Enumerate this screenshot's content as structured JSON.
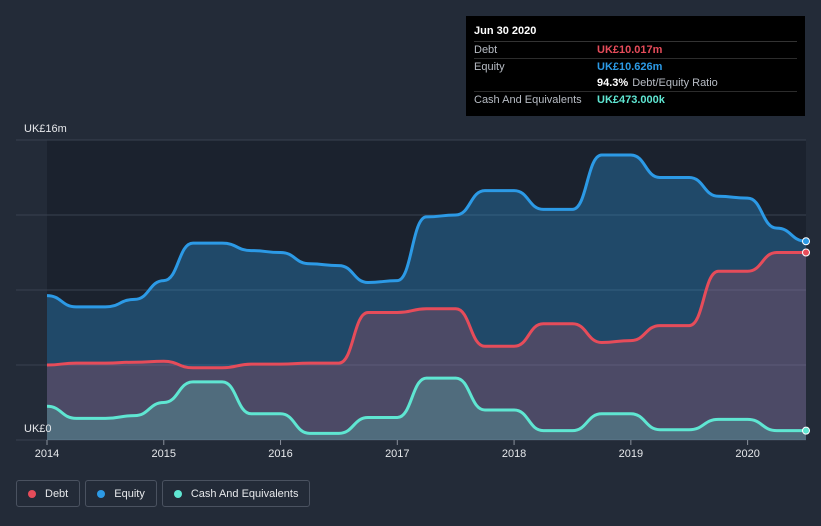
{
  "colors": {
    "debt": "#e64c5a",
    "equity": "#2c9ae6",
    "cash": "#5fe6d2",
    "background": "#232b38",
    "plot_shade": "#161c27"
  },
  "tooltip": {
    "date": "Jun 30 2020",
    "rows": [
      {
        "label": "Debt",
        "value": "UK£10.017m",
        "color": "#e64c5a"
      },
      {
        "label": "Equity",
        "value": "UK£10.626m",
        "color": "#2c9ae6"
      },
      {
        "label": "",
        "value": "94.3%",
        "extra": "Debt/Equity Ratio",
        "color": "#ffffff"
      },
      {
        "label": "Cash And Equivalents",
        "value": "UK£473.000k",
        "color": "#5fe6d2"
      }
    ]
  },
  "legend": [
    {
      "label": "Debt",
      "color": "#e64c5a"
    },
    {
      "label": "Equity",
      "color": "#2c9ae6"
    },
    {
      "label": "Cash And Equivalents",
      "color": "#5fe6d2"
    }
  ],
  "chart_data": {
    "type": "area",
    "y_top_label": "UK£16m",
    "y_bottom_label": "UK£0",
    "ylim": [
      0,
      16
    ],
    "xlim": [
      2014.0,
      2020.5
    ],
    "x_ticks": [
      "2014",
      "2015",
      "2016",
      "2017",
      "2018",
      "2019",
      "2020"
    ],
    "grid": true,
    "legend_position": "bottom-left",
    "series": [
      {
        "name": "Equity",
        "color": "#2c9ae6",
        "points": [
          [
            2014.0,
            7.7
          ],
          [
            2014.25,
            7.1
          ],
          [
            2014.5,
            7.1
          ],
          [
            2014.75,
            7.5
          ],
          [
            2015.0,
            8.5
          ],
          [
            2015.25,
            10.5
          ],
          [
            2015.5,
            10.5
          ],
          [
            2015.75,
            10.1
          ],
          [
            2016.0,
            10.0
          ],
          [
            2016.25,
            9.4
          ],
          [
            2016.5,
            9.3
          ],
          [
            2016.75,
            8.4
          ],
          [
            2017.0,
            8.5
          ],
          [
            2017.25,
            11.9
          ],
          [
            2017.5,
            12.0
          ],
          [
            2017.75,
            13.3
          ],
          [
            2018.0,
            13.3
          ],
          [
            2018.25,
            12.3
          ],
          [
            2018.5,
            12.3
          ],
          [
            2018.75,
            15.2
          ],
          [
            2019.0,
            15.2
          ],
          [
            2019.25,
            14.0
          ],
          [
            2019.5,
            14.0
          ],
          [
            2019.75,
            13.0
          ],
          [
            2020.0,
            12.9
          ],
          [
            2020.25,
            11.3
          ],
          [
            2020.5,
            10.6
          ]
        ]
      },
      {
        "name": "Debt",
        "color": "#e64c5a",
        "points": [
          [
            2014.0,
            4.0
          ],
          [
            2014.25,
            4.1
          ],
          [
            2014.5,
            4.1
          ],
          [
            2014.75,
            4.15
          ],
          [
            2015.0,
            4.2
          ],
          [
            2015.25,
            3.85
          ],
          [
            2015.5,
            3.85
          ],
          [
            2015.75,
            4.05
          ],
          [
            2016.0,
            4.05
          ],
          [
            2016.25,
            4.1
          ],
          [
            2016.5,
            4.1
          ],
          [
            2016.75,
            6.8
          ],
          [
            2017.0,
            6.8
          ],
          [
            2017.25,
            7.0
          ],
          [
            2017.5,
            7.0
          ],
          [
            2017.75,
            5.0
          ],
          [
            2018.0,
            5.0
          ],
          [
            2018.25,
            6.2
          ],
          [
            2018.5,
            6.2
          ],
          [
            2018.75,
            5.2
          ],
          [
            2019.0,
            5.3
          ],
          [
            2019.25,
            6.1
          ],
          [
            2019.5,
            6.1
          ],
          [
            2019.75,
            9.0
          ],
          [
            2020.0,
            9.0
          ],
          [
            2020.25,
            10.0
          ],
          [
            2020.5,
            10.0
          ]
        ]
      },
      {
        "name": "Cash And Equivalents",
        "color": "#5fe6d2",
        "points": [
          [
            2014.0,
            1.8
          ],
          [
            2014.25,
            1.15
          ],
          [
            2014.5,
            1.15
          ],
          [
            2014.75,
            1.3
          ],
          [
            2015.0,
            2.0
          ],
          [
            2015.25,
            3.1
          ],
          [
            2015.5,
            3.1
          ],
          [
            2015.75,
            1.4
          ],
          [
            2016.0,
            1.4
          ],
          [
            2016.25,
            0.35
          ],
          [
            2016.5,
            0.35
          ],
          [
            2016.75,
            1.2
          ],
          [
            2017.0,
            1.2
          ],
          [
            2017.25,
            3.3
          ],
          [
            2017.5,
            3.3
          ],
          [
            2017.75,
            1.6
          ],
          [
            2018.0,
            1.6
          ],
          [
            2018.25,
            0.5
          ],
          [
            2018.5,
            0.5
          ],
          [
            2018.75,
            1.4
          ],
          [
            2019.0,
            1.4
          ],
          [
            2019.25,
            0.55
          ],
          [
            2019.5,
            0.55
          ],
          [
            2019.75,
            1.1
          ],
          [
            2020.0,
            1.1
          ],
          [
            2020.25,
            0.5
          ],
          [
            2020.5,
            0.5
          ]
        ]
      }
    ]
  }
}
